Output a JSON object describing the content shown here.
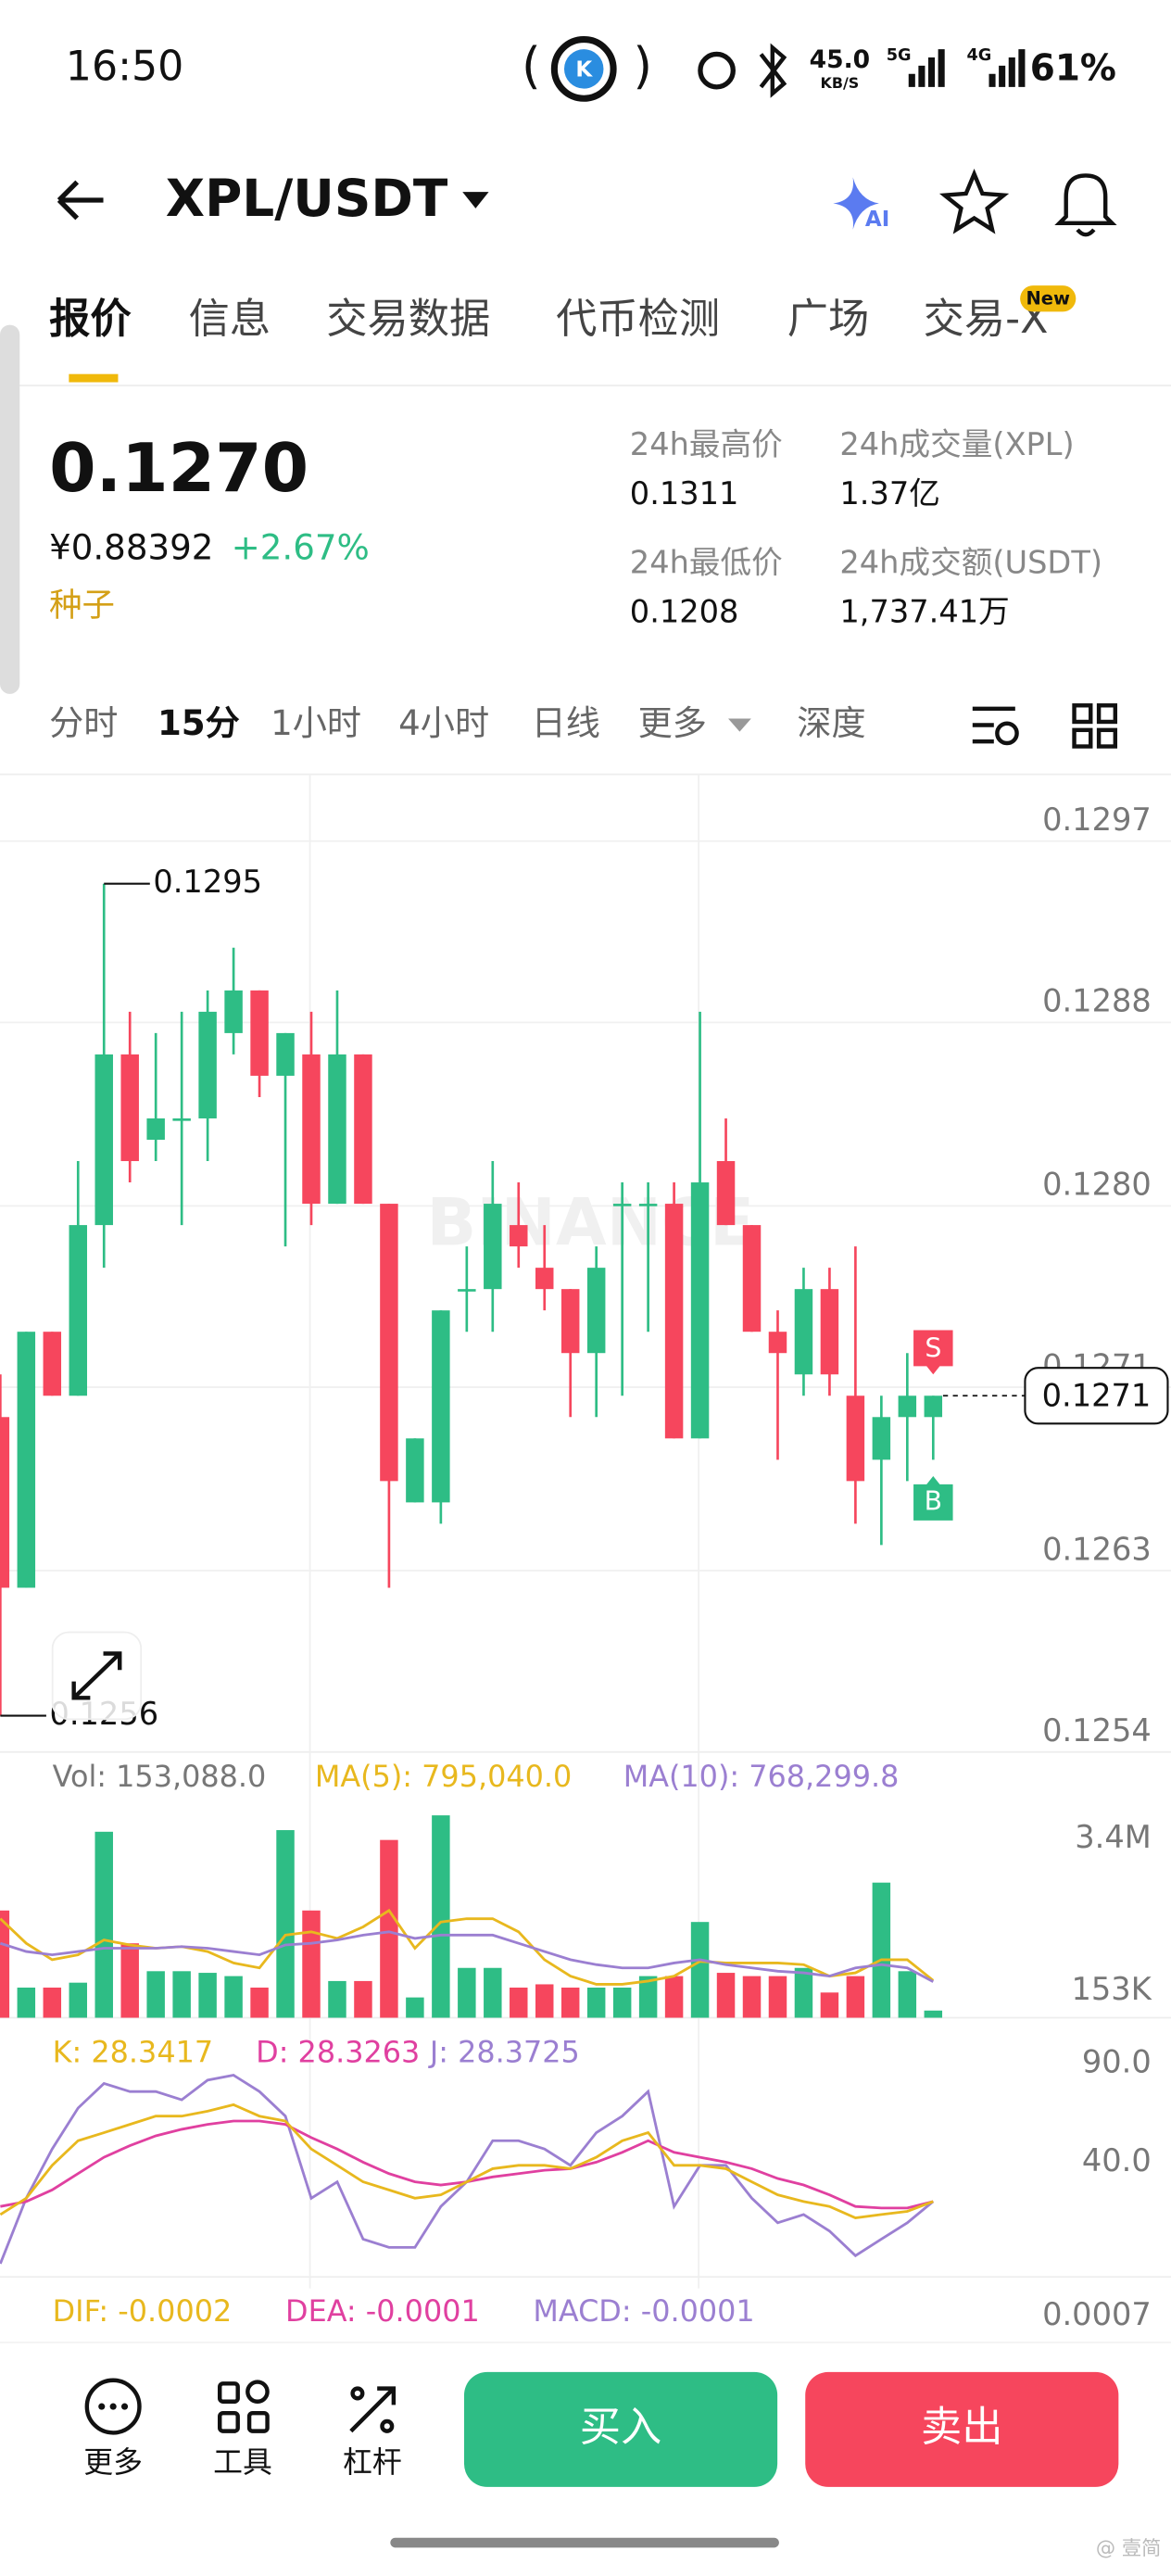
{
  "status_bar": {
    "time": "16:50",
    "speed": "45.0",
    "speed_unit": "KB/S",
    "net1": "5G",
    "net2": "4G",
    "battery": "61%"
  },
  "header": {
    "title": "XPL/USDT",
    "ai_badge": "AI"
  },
  "tabs": {
    "items": [
      "报价",
      "信息",
      "交易数据",
      "代币检测",
      "广场",
      "交易-X"
    ],
    "badge": "New"
  },
  "ticker": {
    "price": "0.1270",
    "price_cny": "¥0.88392",
    "change": "+2.67%",
    "tag": "种子",
    "stats": [
      {
        "label": "24h最高价",
        "value": "0.1311"
      },
      {
        "label": "24h成交量(XPL)",
        "value": "1.37亿"
      },
      {
        "label": "24h最低价",
        "value": "0.1208"
      },
      {
        "label": "24h成交额(USDT)",
        "value": "1,737.41万"
      }
    ]
  },
  "intervals": [
    "分时",
    "15分",
    "1小时",
    "4小时",
    "日线",
    "更多",
    "深度"
  ],
  "chart_data": [
    {
      "type": "candlestick",
      "open": [
        0.127,
        0.1262,
        0.1274,
        0.1271,
        0.1279,
        0.1287,
        0.1283,
        0.1284,
        0.1284,
        0.1288,
        0.129,
        0.1286,
        0.1287,
        0.128,
        0.1287,
        0.128,
        0.1266,
        0.1266,
        0.1276,
        0.1276,
        0.1279,
        0.1277,
        0.1276,
        0.1273,
        0.128,
        0.128,
        0.128,
        0.1269,
        0.1282,
        0.1279,
        0.1274,
        0.1272,
        0.1276,
        0.1271,
        0.1268,
        0.127,
        0.127
      ],
      "high": [
        0.1272,
        0.1274,
        0.1274,
        0.1282,
        0.1295,
        0.1289,
        0.1288,
        0.1289,
        0.129,
        0.1292,
        0.129,
        0.1288,
        0.1289,
        0.129,
        0.1287,
        0.128,
        0.1269,
        0.1275,
        0.1278,
        0.1282,
        0.1281,
        0.1279,
        0.1276,
        0.1278,
        0.1281,
        0.1281,
        0.1281,
        0.1289,
        0.1284,
        0.1279,
        0.1275,
        0.1277,
        0.1277,
        0.1278,
        0.1271,
        0.1273,
        0.1271
      ],
      "low": [
        0.1256,
        0.1262,
        0.1271,
        0.1271,
        0.1277,
        0.1281,
        0.1282,
        0.1279,
        0.1282,
        0.1287,
        0.1285,
        0.1278,
        0.1279,
        0.128,
        0.128,
        0.1262,
        0.1266,
        0.1265,
        0.1274,
        0.1274,
        0.1277,
        0.1275,
        0.127,
        0.127,
        0.1271,
        0.1274,
        0.1269,
        0.1269,
        0.1279,
        0.1274,
        0.1268,
        0.1271,
        0.1271,
        0.1265,
        0.1264,
        0.1267,
        0.1268
      ],
      "close": [
        0.1262,
        0.1274,
        0.1271,
        0.1279,
        0.1287,
        0.1282,
        0.1284,
        0.1284,
        0.1289,
        0.129,
        0.1286,
        0.1288,
        0.128,
        0.1287,
        0.128,
        0.1267,
        0.1269,
        0.1275,
        0.1276,
        0.128,
        0.1278,
        0.1276,
        0.1273,
        0.1277,
        0.128,
        0.128,
        0.1269,
        0.1281,
        0.1279,
        0.1274,
        0.1273,
        0.1276,
        0.1272,
        0.1267,
        0.127,
        0.1271,
        0.1271
      ],
      "ylim": [
        0.12543,
        0.12999
      ],
      "yticks": [
        0.1297,
        {
          "value": 0.12885,
          "label": "0.1288"
        },
        {
          "value": 0.12799,
          "label": "0.1280"
        },
        {
          "value": 0.12714,
          "label": "0.1271"
        },
        {
          "value": 0.12628,
          "label": "0.1263"
        },
        {
          "value": 0.12543,
          "label": "0.1254"
        }
      ],
      "grid": true,
      "up_color": "#2EBD85",
      "down_color": "#F6465D",
      "annotations": {
        "high": "0.1295",
        "low": "0.1256",
        "last": "0.1271",
        "sell": "S",
        "buy": "B"
      },
      "watermark": "BINANCE"
    },
    {
      "type": "bar",
      "title": "Vol: 153,088.0",
      "values": [
        2288000,
        643000,
        643000,
        748000,
        3968000,
        1588000,
        993000,
        993000,
        958000,
        888000,
        643000,
        4003000,
        2288000,
        783000,
        783000,
        3793000,
        433000,
        4318000,
        1063000,
        1063000,
        643000,
        713000,
        643000,
        643000,
        643000,
        888000,
        888000,
        2043000,
        958000,
        888000,
        888000,
        1063000,
        538000,
        888000,
        2883000,
        993000,
        153088
      ],
      "ylim": [
        0,
        5600000
      ],
      "yticks": [
        {
          "value": 3400000,
          "label": "3.4M"
        },
        {
          "value": 153000,
          "label": "153K"
        }
      ],
      "series": [
        {
          "name": "MA(5): 795,040.0",
          "color": "#E8B81E",
          "values": [
            2113000,
            1588000,
            1238000,
            1343000,
            1658000,
            1553000,
            1483000,
            1518000,
            1413000,
            1168000,
            1063000,
            1763000,
            1833000,
            1693000,
            1938000,
            2288000,
            1483000,
            2043000,
            2113000,
            2113000,
            1833000,
            1238000,
            888000,
            713000,
            713000,
            783000,
            888000,
            1203000,
            1168000,
            1168000,
            1168000,
            1133000,
            888000,
            958000,
            1238000,
            1238000,
            795040
          ]
        },
        {
          "name": "MA(10): 768,299.8",
          "color": "#9B7FD1",
          "values": [
            1588000,
            1413000,
            1343000,
            1413000,
            1483000,
            1483000,
            1483000,
            1518000,
            1483000,
            1413000,
            1343000,
            1553000,
            1588000,
            1658000,
            1763000,
            1833000,
            1693000,
            1763000,
            1763000,
            1763000,
            1588000,
            1413000,
            1238000,
            1133000,
            1063000,
            1063000,
            1168000,
            1238000,
            1133000,
            1063000,
            993000,
            958000,
            888000,
            1063000,
            1133000,
            1063000,
            768299.8
          ]
        }
      ]
    },
    {
      "type": "line",
      "ylim": [
        -7.5,
        121.7
      ],
      "yticks": [
        {
          "value": 90,
          "label": "90.0"
        },
        {
          "value": 40,
          "label": "40.0"
        }
      ],
      "series": [
        {
          "name": "K: 28.3417",
          "color": "#E8B81E",
          "values": [
            21.7,
            30,
            46.7,
            59.2,
            63.3,
            67.5,
            71.7,
            71.7,
            74.2,
            77.5,
            71.7,
            69.2,
            55,
            46.7,
            38.3,
            34.2,
            30,
            31.7,
            38.3,
            45,
            46.7,
            46.7,
            45,
            50.8,
            59.2,
            63.3,
            46.7,
            46.7,
            45,
            38.3,
            31.7,
            28.3,
            25.8,
            20,
            21.7,
            23.3,
            28.3417
          ]
        },
        {
          "name": "D: 28.3263",
          "color": "#E040A0",
          "values": [
            25.8,
            28.3,
            34.2,
            42.5,
            50.8,
            56.7,
            61.7,
            65,
            67.5,
            69.2,
            69.2,
            67.5,
            60.8,
            55,
            48.3,
            42.5,
            38.3,
            36.7,
            38.3,
            40.8,
            42.5,
            44.2,
            45,
            48.3,
            53.3,
            59.2,
            53.3,
            50.8,
            48.3,
            45,
            40,
            36.7,
            31.7,
            25.8,
            25,
            25,
            28.3263
          ]
        },
        {
          "name": "J: 28.3725",
          "color": "#9B7FD1",
          "values": [
            -3.3,
            30,
            55,
            75.8,
            88.3,
            84.2,
            84.2,
            80,
            90,
            92.5,
            84.2,
            71.7,
            30,
            38.3,
            9.2,
            5,
            5,
            25.8,
            38.3,
            59.2,
            59.2,
            55,
            46.7,
            63.3,
            71.7,
            84.2,
            25.8,
            46.7,
            46.7,
            30,
            17.5,
            21.7,
            13.3,
            0.8,
            9.2,
            17.5,
            28.3725
          ]
        }
      ]
    }
  ],
  "macd": {
    "labels": [
      "DIF: -0.0002",
      "DEA: -0.0001",
      "MACD: -0.0001"
    ],
    "axis_label": "0.0007"
  },
  "toolbar": {
    "items": [
      "更多",
      "工具",
      "杠杆"
    ],
    "buy": "买入",
    "sell": "卖出"
  },
  "credit": "@ 壹简"
}
